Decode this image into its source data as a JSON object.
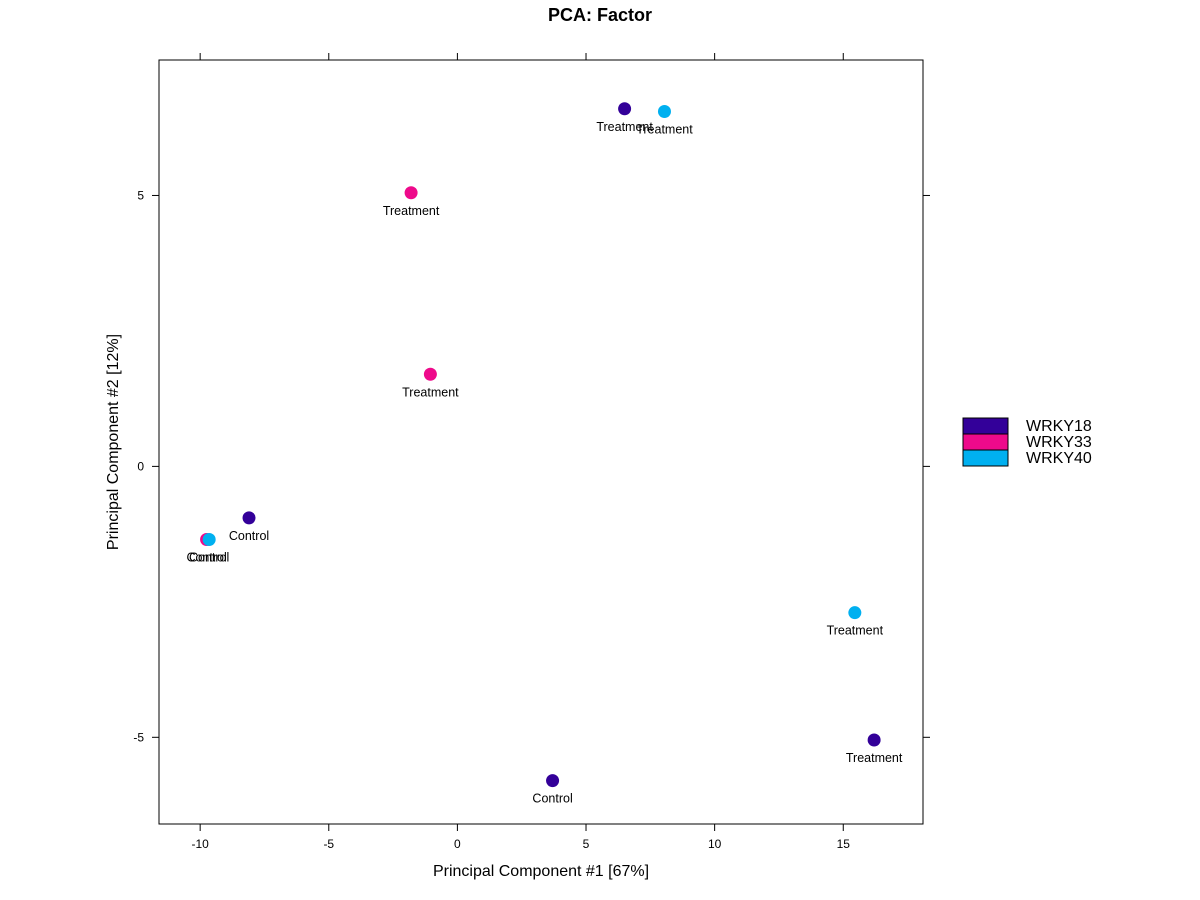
{
  "chart_data": {
    "type": "scatter",
    "title": "PCA: Factor",
    "xlabel": "Principal Component #1 [67%]",
    "ylabel": "Principal Component #2 [12%]",
    "xlim": [
      -11.6,
      18.1
    ],
    "ylim": [
      -6.6,
      7.5
    ],
    "x_ticks": [
      -10,
      -5,
      0,
      5,
      10,
      15
    ],
    "y_ticks": [
      -5,
      0,
      5
    ],
    "legend_position": "right",
    "grid": false,
    "series": [
      {
        "name": "WRKY18",
        "color": "#330099",
        "points": [
          {
            "x": 6.5,
            "y": 6.6,
            "label": "Treatment"
          },
          {
            "x": -8.1,
            "y": -0.95,
            "label": "Control"
          },
          {
            "x": 3.7,
            "y": -5.8,
            "label": "Control"
          },
          {
            "x": 16.2,
            "y": -5.05,
            "label": "Treatment"
          }
        ]
      },
      {
        "name": "WRKY33",
        "color": "#EE0A8B",
        "points": [
          {
            "x": -1.8,
            "y": 5.05,
            "label": "Treatment"
          },
          {
            "x": -1.05,
            "y": 1.7,
            "label": "Treatment"
          },
          {
            "x": -9.75,
            "y": -1.35,
            "label": "Control"
          }
        ]
      },
      {
        "name": "WRKY40",
        "color": "#00B0F0",
        "points": [
          {
            "x": 8.05,
            "y": 6.55,
            "label": "Treatment"
          },
          {
            "x": 15.45,
            "y": -2.7,
            "label": "Treatment"
          },
          {
            "x": -9.65,
            "y": -1.35,
            "label": "Control"
          }
        ]
      }
    ]
  }
}
